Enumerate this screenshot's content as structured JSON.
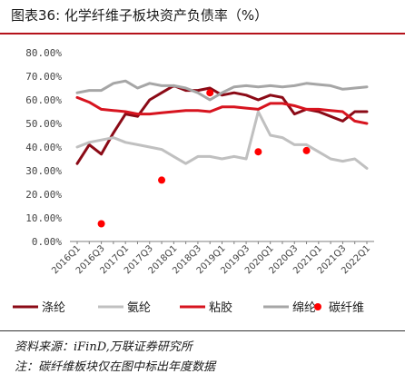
{
  "header": {
    "title": "图表36:  化学纤维子板块资产负债率（%）"
  },
  "footer": {
    "source": "资料来源：iFinD,万联证券研究所",
    "note": "注：碳纤维板块仅在图中标出年度数据"
  },
  "chart_data": {
    "type": "line",
    "title": "化学纤维子板块资产负债率（%）",
    "ylim": [
      0,
      0.8
    ],
    "y_ticks": [
      "0.00%",
      "10.00%",
      "20.00%",
      "30.00%",
      "40.00%",
      "50.00%",
      "60.00%",
      "70.00%",
      "80.00%"
    ],
    "x": [
      "2016Q1",
      "2016Q2",
      "2016Q3",
      "2016Q4",
      "2017Q1",
      "2017Q2",
      "2017Q3",
      "2017Q4",
      "2018Q1",
      "2018Q2",
      "2018Q3",
      "2018Q4",
      "2019Q1",
      "2019Q2",
      "2019Q3",
      "2019Q4",
      "2020Q1",
      "2020Q2",
      "2020Q3",
      "2020Q4",
      "2021Q1",
      "2021Q2",
      "2021Q3",
      "2021Q4",
      "2022Q1"
    ],
    "x_tick_labels": [
      "2016Q1",
      "2016Q3",
      "2017Q1",
      "2017Q3",
      "2018Q1",
      "2018Q3",
      "2019Q1",
      "2019Q3",
      "2020Q1",
      "2020Q3",
      "2021Q1",
      "2021Q3",
      "2022Q1"
    ],
    "grid": false,
    "legend_position": "bottom",
    "series": [
      {
        "name": "涤纶",
        "kind": "line",
        "color": "#8b0a16",
        "width": 3,
        "values": [
          0.33,
          0.41,
          0.37,
          0.46,
          0.54,
          0.53,
          0.6,
          0.63,
          0.66,
          0.64,
          0.64,
          0.65,
          0.62,
          0.63,
          0.62,
          0.6,
          0.62,
          0.61,
          0.54,
          0.56,
          0.55,
          0.53,
          0.51,
          0.55,
          0.55
        ]
      },
      {
        "name": "氨纶",
        "kind": "line",
        "color": "#c0c0c0",
        "width": 3,
        "values": [
          0.4,
          0.42,
          0.43,
          0.44,
          0.42,
          0.41,
          0.4,
          0.39,
          0.36,
          0.33,
          0.36,
          0.36,
          0.35,
          0.36,
          0.35,
          0.55,
          0.45,
          0.44,
          0.41,
          0.41,
          0.38,
          0.35,
          0.34,
          0.35,
          0.31
        ]
      },
      {
        "name": "粘胶",
        "kind": "line",
        "color": "#d7141f",
        "width": 3,
        "values": [
          0.61,
          0.59,
          0.56,
          0.555,
          0.55,
          0.54,
          0.54,
          0.545,
          0.55,
          0.555,
          0.555,
          0.55,
          0.57,
          0.57,
          0.565,
          0.56,
          0.585,
          0.585,
          0.575,
          0.56,
          0.56,
          0.555,
          0.55,
          0.51,
          0.5
        ]
      },
      {
        "name": "绵纶",
        "kind": "line",
        "color": "#a6a6a6",
        "width": 3,
        "values": [
          0.63,
          0.64,
          0.64,
          0.67,
          0.68,
          0.65,
          0.67,
          0.66,
          0.66,
          0.65,
          0.63,
          0.6,
          0.63,
          0.655,
          0.66,
          0.655,
          0.66,
          0.655,
          0.66,
          0.67,
          0.665,
          0.66,
          0.645,
          0.65,
          0.655
        ]
      },
      {
        "name": "碳纤维",
        "kind": "scatter",
        "color": "#ff0000",
        "points": [
          {
            "x": "2016Q3",
            "y": 0.075
          },
          {
            "x": "2017Q4",
            "y": 0.26
          },
          {
            "x": "2018Q4",
            "y": 0.63
          },
          {
            "x": "2019Q4",
            "y": 0.38
          },
          {
            "x": "2020Q4",
            "y": 0.385
          }
        ]
      }
    ]
  }
}
